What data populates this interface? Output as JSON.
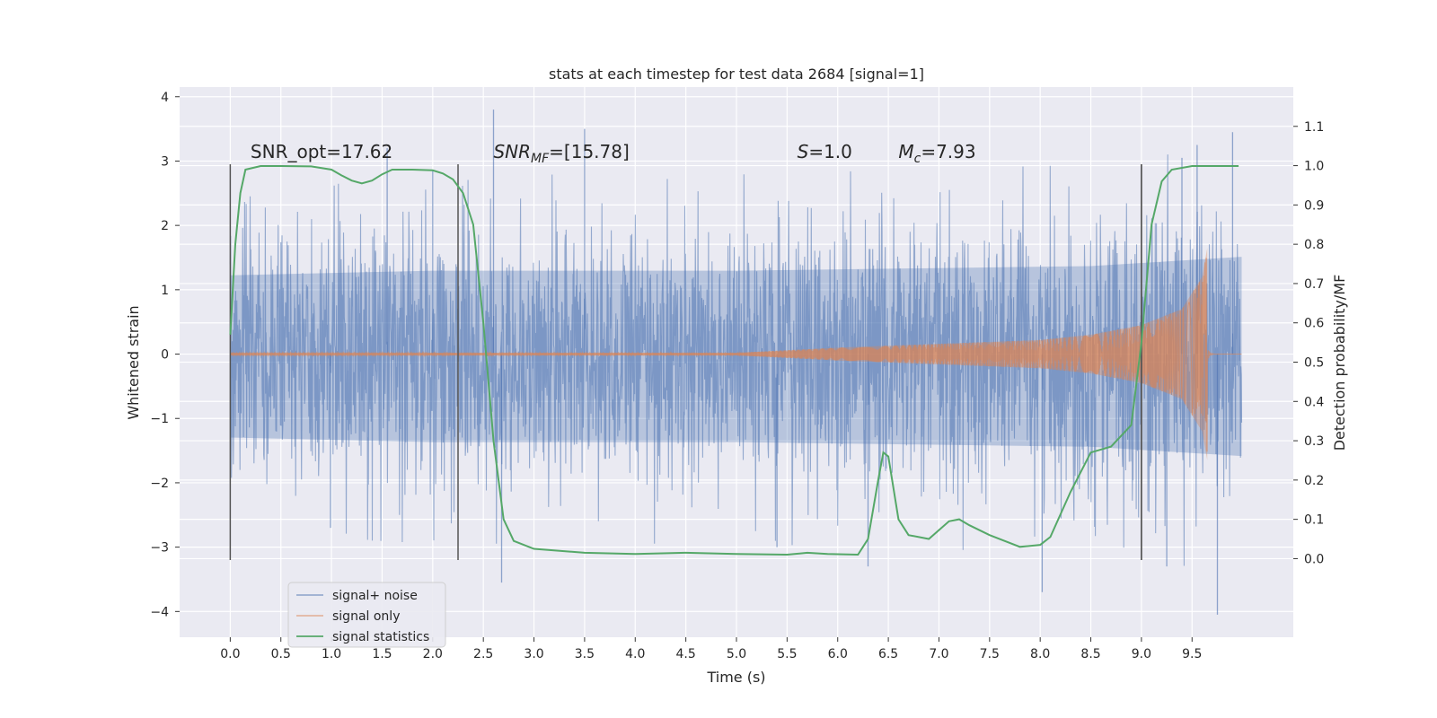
{
  "chart_data": {
    "type": "line",
    "title": "stats at each timestep for test data 2684 [signal=1]",
    "xlabel": "Time (s)",
    "ylabel": "Whitened strain",
    "y2label": "Detection probability/MF",
    "xlim": [
      -0.5,
      10.5
    ],
    "ylim": [
      -4.4,
      4.15
    ],
    "y2lim": [
      -0.2,
      1.2
    ],
    "x_ticks": [
      0.0,
      0.5,
      1.0,
      1.5,
      2.0,
      2.5,
      3.0,
      3.5,
      4.0,
      4.5,
      5.0,
      5.5,
      6.0,
      6.5,
      7.0,
      7.5,
      8.0,
      8.5,
      9.0,
      9.5
    ],
    "x_tick_labels": [
      "0.0",
      "0.5",
      "1.0",
      "1.5",
      "2.0",
      "2.5",
      "3.0",
      "3.5",
      "4.0",
      "4.5",
      "5.0",
      "5.5",
      "6.0",
      "6.5",
      "7.0",
      "7.5",
      "8.0",
      "8.5",
      "9.0",
      "9.5"
    ],
    "y_ticks": [
      -4,
      -3,
      -2,
      -1,
      0,
      1,
      2,
      3,
      4
    ],
    "y_tick_labels": [
      "−4",
      "−3",
      "−2",
      "−1",
      "0",
      "1",
      "2",
      "3",
      "4"
    ],
    "y2_ticks": [
      0.0,
      0.1,
      0.2,
      0.3,
      0.4,
      0.5,
      0.6,
      0.7,
      0.8,
      0.9,
      1.0,
      1.1
    ],
    "y2_tick_labels": [
      "0.0",
      "0.1",
      "0.2",
      "0.3",
      "0.4",
      "0.5",
      "0.6",
      "0.7",
      "0.8",
      "0.9",
      "1.0",
      "1.1"
    ],
    "grid": true,
    "legend_position": "lower-left",
    "vertical_lines": [
      0.0,
      2.25,
      9.0,
      9.0
    ],
    "vertical_line_range": [
      -3.2,
      2.95
    ],
    "annotations": [
      {
        "x": 0.2,
        "y": 3.05,
        "text": "SNR_opt=17.62"
      },
      {
        "x": 2.6,
        "y": 3.05,
        "prefix": "SNR",
        "sub": "MF",
        "suffix": "=[15.78]"
      },
      {
        "x": 5.6,
        "y": 3.05,
        "prefix": "S",
        "sub": "",
        "suffix": "=1.0"
      },
      {
        "x": 6.6,
        "y": 3.05,
        "prefix": "M",
        "sub": "c",
        "suffix": "=7.93"
      }
    ],
    "series": [
      {
        "name": "signal+ noise",
        "color": "#4c72b0",
        "axis": "left",
        "x_range": [
          0.0,
          9.99
        ],
        "envelope_upper": [
          [
            0.0,
            1.7
          ],
          [
            2.0,
            1.8
          ],
          [
            5.0,
            1.8
          ],
          [
            8.5,
            1.9
          ],
          [
            9.99,
            2.1
          ]
        ],
        "envelope_lower": [
          [
            0.0,
            -1.8
          ],
          [
            2.0,
            -1.9
          ],
          [
            5.0,
            -1.9
          ],
          [
            8.5,
            -2.0
          ],
          [
            9.99,
            -2.2
          ]
        ],
        "peaks": [
          [
            0.99,
            -2.7
          ],
          [
            1.55,
            3.2
          ],
          [
            2.0,
            2.85
          ],
          [
            2.6,
            3.8
          ],
          [
            2.68,
            -3.55
          ],
          [
            3.5,
            3.5
          ],
          [
            5.4,
            -3.0
          ],
          [
            6.3,
            -3.3
          ],
          [
            8.02,
            -3.7
          ],
          [
            9.25,
            -3.3
          ],
          [
            9.4,
            3.05
          ],
          [
            9.55,
            3.25
          ],
          [
            9.75,
            -4.05
          ],
          [
            9.9,
            3.45
          ]
        ]
      },
      {
        "name": "signal only",
        "color": "#dd8452",
        "axis": "left",
        "x_range": [
          0.0,
          9.99
        ],
        "chirp_merger_time": 9.65,
        "chirp_peak_amplitude": 1.65,
        "envelope": [
          [
            0.0,
            0.02
          ],
          [
            5.0,
            0.02
          ],
          [
            6.0,
            0.1
          ],
          [
            7.0,
            0.16
          ],
          [
            8.0,
            0.22
          ],
          [
            8.5,
            0.3
          ],
          [
            9.0,
            0.45
          ],
          [
            9.4,
            0.7
          ],
          [
            9.6,
            1.2
          ],
          [
            9.65,
            1.65
          ]
        ]
      },
      {
        "name": "signal statistics",
        "color": "#55a868",
        "axis": "right",
        "points": [
          [
            0.0,
            0.57
          ],
          [
            0.05,
            0.8
          ],
          [
            0.1,
            0.93
          ],
          [
            0.15,
            0.99
          ],
          [
            0.3,
            0.999
          ],
          [
            0.5,
            0.999
          ],
          [
            0.8,
            0.998
          ],
          [
            1.0,
            0.99
          ],
          [
            1.1,
            0.975
          ],
          [
            1.2,
            0.962
          ],
          [
            1.3,
            0.955
          ],
          [
            1.4,
            0.962
          ],
          [
            1.5,
            0.978
          ],
          [
            1.6,
            0.99
          ],
          [
            1.8,
            0.99
          ],
          [
            2.0,
            0.988
          ],
          [
            2.1,
            0.98
          ],
          [
            2.2,
            0.965
          ],
          [
            2.3,
            0.93
          ],
          [
            2.4,
            0.85
          ],
          [
            2.5,
            0.6
          ],
          [
            2.6,
            0.3
          ],
          [
            2.7,
            0.1
          ],
          [
            2.8,
            0.045
          ],
          [
            3.0,
            0.025
          ],
          [
            3.5,
            0.015
          ],
          [
            4.0,
            0.012
          ],
          [
            4.5,
            0.015
          ],
          [
            5.0,
            0.012
          ],
          [
            5.5,
            0.01
          ],
          [
            5.7,
            0.015
          ],
          [
            5.9,
            0.012
          ],
          [
            6.2,
            0.01
          ],
          [
            6.3,
            0.05
          ],
          [
            6.4,
            0.2
          ],
          [
            6.45,
            0.27
          ],
          [
            6.5,
            0.26
          ],
          [
            6.6,
            0.1
          ],
          [
            6.7,
            0.06
          ],
          [
            6.9,
            0.05
          ],
          [
            7.1,
            0.095
          ],
          [
            7.2,
            0.1
          ],
          [
            7.3,
            0.085
          ],
          [
            7.5,
            0.06
          ],
          [
            7.8,
            0.03
          ],
          [
            8.0,
            0.035
          ],
          [
            8.1,
            0.055
          ],
          [
            8.3,
            0.17
          ],
          [
            8.5,
            0.27
          ],
          [
            8.7,
            0.285
          ],
          [
            8.9,
            0.34
          ],
          [
            9.0,
            0.55
          ],
          [
            9.1,
            0.85
          ],
          [
            9.2,
            0.96
          ],
          [
            9.3,
            0.99
          ],
          [
            9.5,
            0.999
          ],
          [
            9.96,
            0.999
          ]
        ]
      }
    ]
  }
}
